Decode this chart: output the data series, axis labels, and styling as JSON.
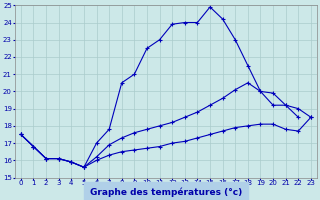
{
  "xlabel": "Graphe des températures (°c)",
  "background_color": "#cce8e8",
  "grid_color": "#aacccc",
  "line_color": "#0000bb",
  "ylim": [
    15,
    25
  ],
  "xlim": [
    -0.5,
    23.5
  ],
  "yticks": [
    15,
    16,
    17,
    18,
    19,
    20,
    21,
    22,
    23,
    24,
    25
  ],
  "xticks": [
    0,
    1,
    2,
    3,
    4,
    5,
    6,
    7,
    8,
    9,
    10,
    11,
    12,
    13,
    14,
    15,
    16,
    17,
    18,
    19,
    20,
    21,
    22,
    23
  ],
  "line1_x": [
    0,
    1,
    2,
    3,
    4,
    5,
    6,
    7,
    8,
    9,
    10,
    11,
    12,
    13,
    14,
    15,
    16,
    17,
    18,
    19,
    20,
    21,
    22
  ],
  "line1_y": [
    17.5,
    16.8,
    16.1,
    16.1,
    15.9,
    15.6,
    17.0,
    17.8,
    20.5,
    21.0,
    22.5,
    23.0,
    23.9,
    24.0,
    24.0,
    24.9,
    24.2,
    23.0,
    21.5,
    20.0,
    19.2,
    19.2,
    18.5
  ],
  "line2_x": [
    0,
    1,
    2,
    3,
    4,
    5,
    6,
    7,
    8,
    9,
    10,
    11,
    12,
    13,
    14,
    15,
    16,
    17,
    18,
    19,
    20,
    21,
    22,
    23
  ],
  "line2_y": [
    17.5,
    16.8,
    16.1,
    16.1,
    15.9,
    15.6,
    16.2,
    16.9,
    17.3,
    17.6,
    17.8,
    18.0,
    18.2,
    18.5,
    18.8,
    19.2,
    19.6,
    20.1,
    20.5,
    20.0,
    19.9,
    19.2,
    19.0,
    18.5
  ],
  "line3_x": [
    0,
    1,
    2,
    3,
    4,
    5,
    6,
    7,
    8,
    9,
    10,
    11,
    12,
    13,
    14,
    15,
    16,
    17,
    18,
    19,
    20,
    21,
    22,
    23
  ],
  "line3_y": [
    17.5,
    16.8,
    16.1,
    16.1,
    15.9,
    15.6,
    16.0,
    16.3,
    16.5,
    16.6,
    16.7,
    16.8,
    17.0,
    17.1,
    17.3,
    17.5,
    17.7,
    17.9,
    18.0,
    18.1,
    18.1,
    17.8,
    17.7,
    18.5
  ],
  "xlabel_color": "#0000aa",
  "tick_color": "#0000aa",
  "label_bg_color": "#b0d0e8",
  "xlabel_fontsize": 6.5,
  "tick_fontsize": 5.0
}
